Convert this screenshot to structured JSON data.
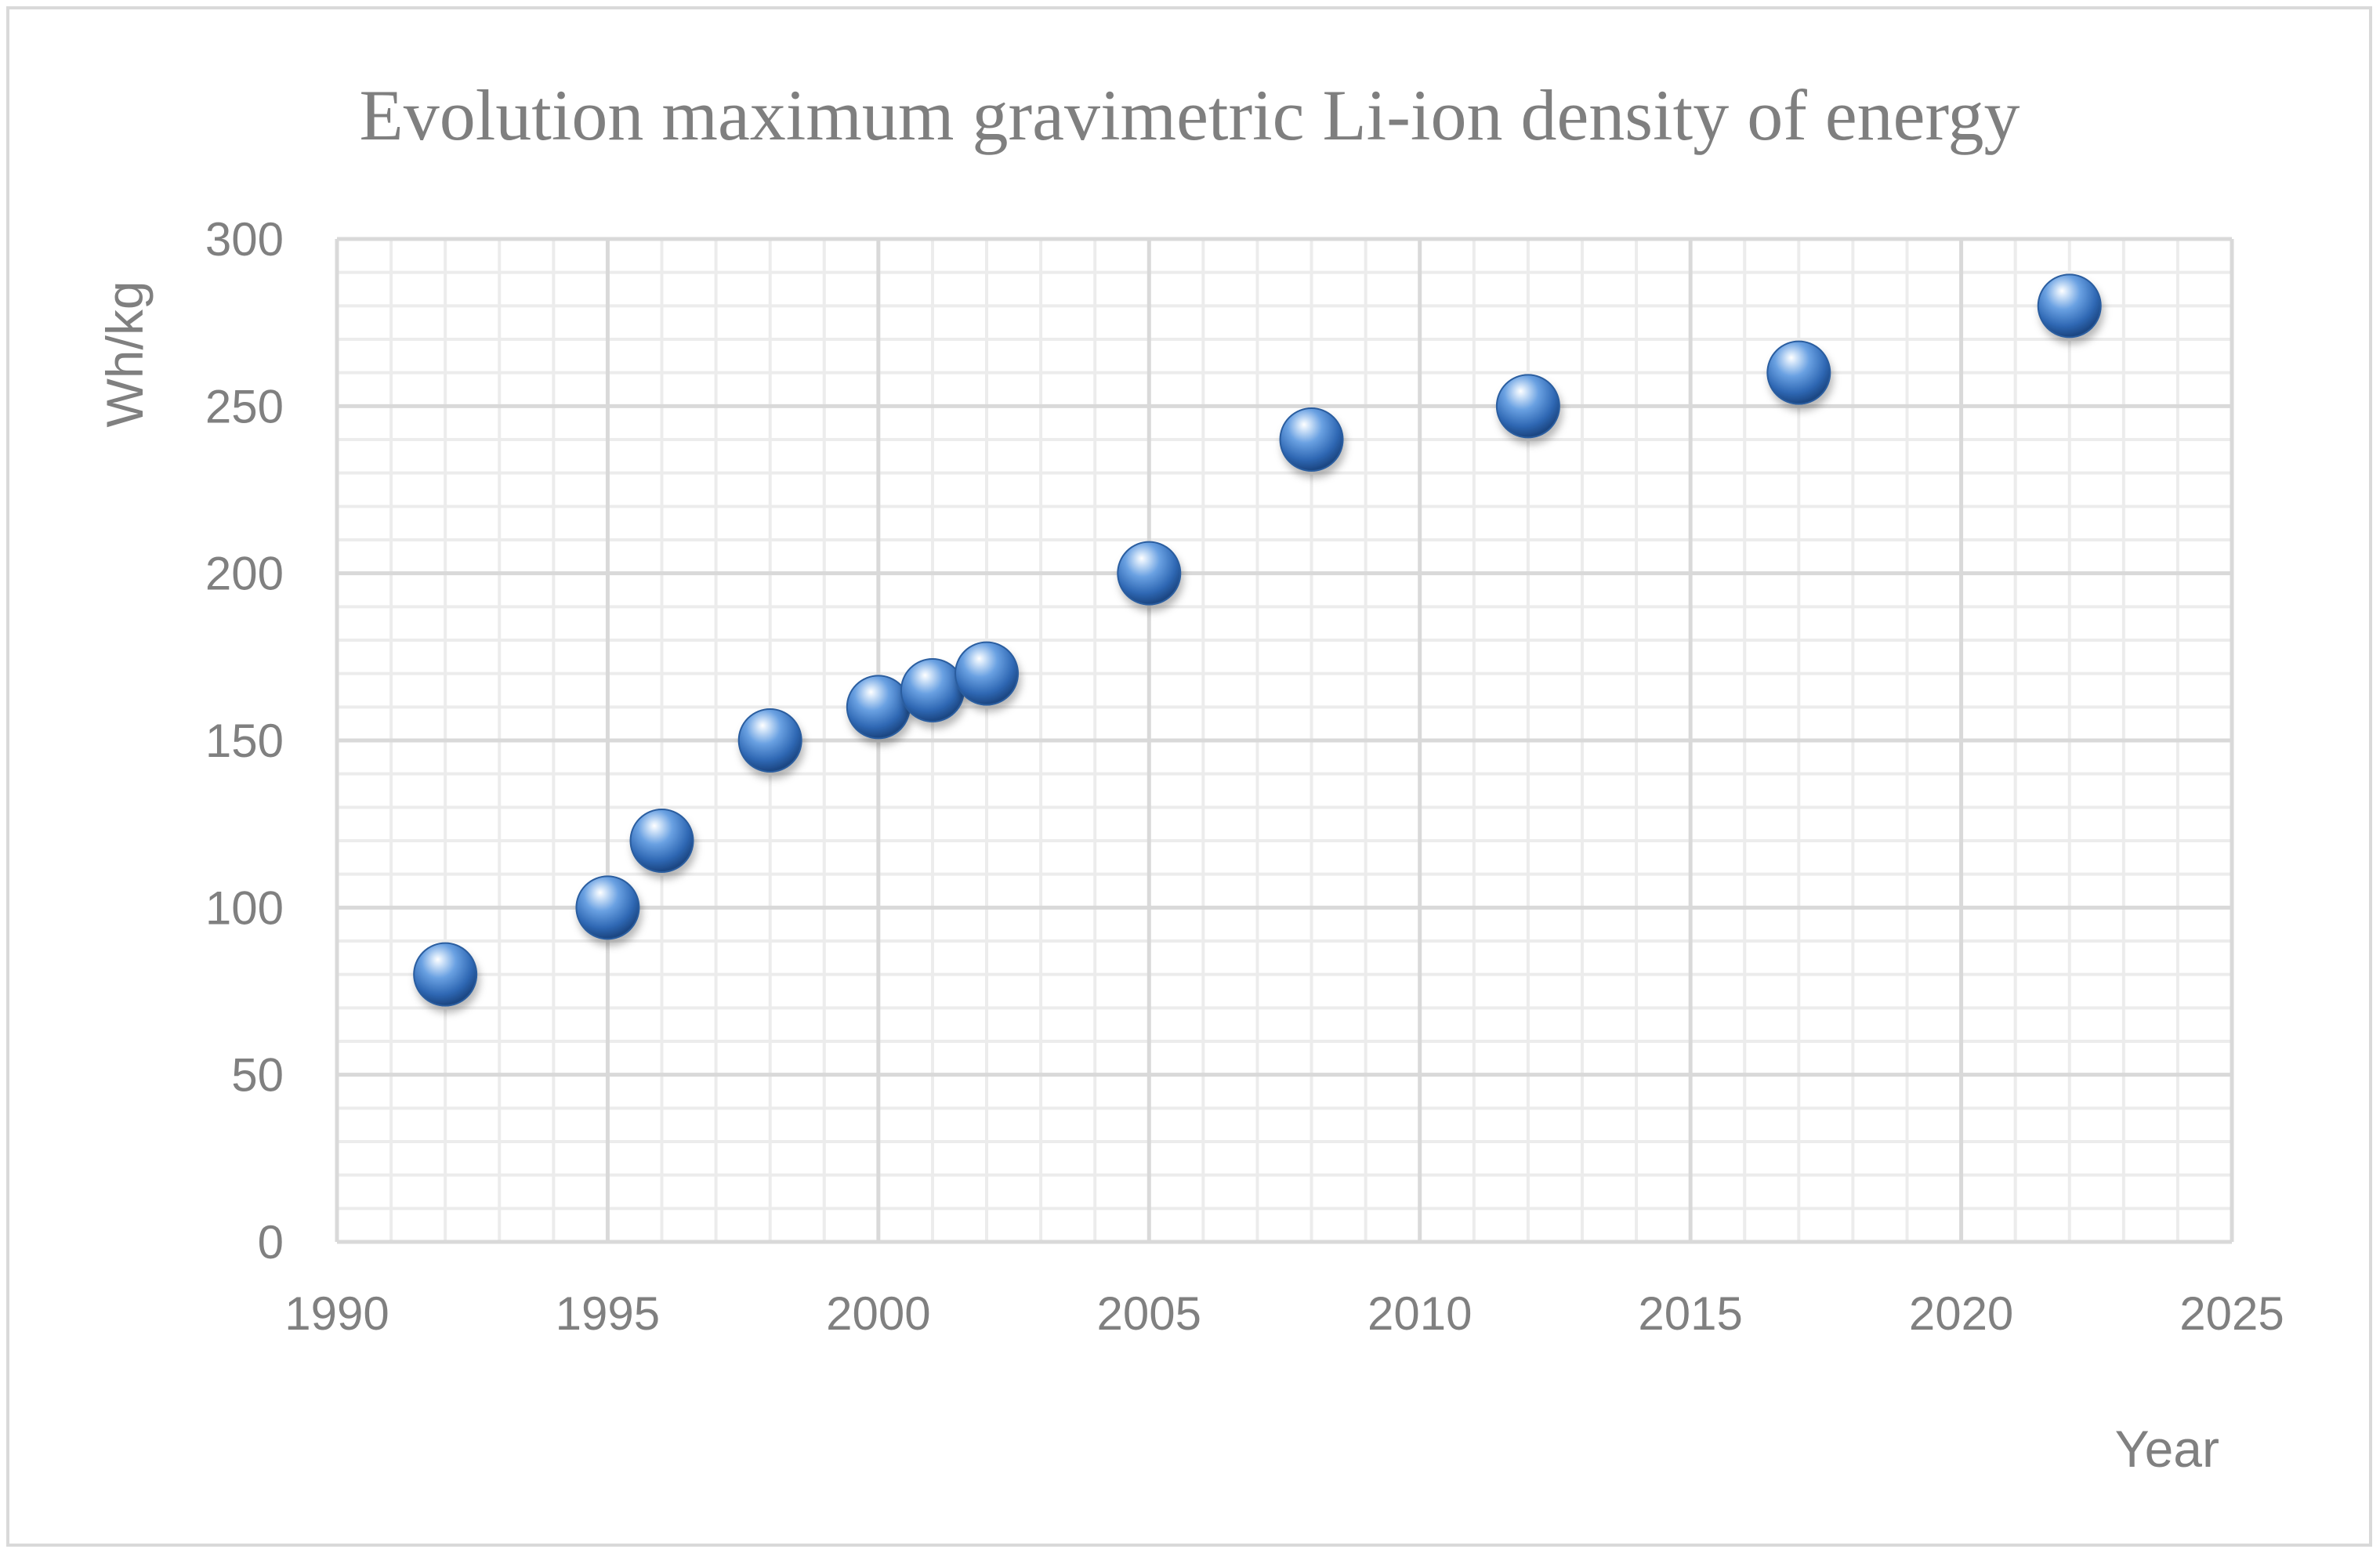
{
  "chart_data": {
    "type": "scatter",
    "title": "Evolution maximum gravimetric Li-ion density of energy",
    "xlabel": "Year",
    "ylabel": "Wh/kg",
    "xlim": [
      1990,
      2025
    ],
    "ylim": [
      0,
      300
    ],
    "x_ticks": [
      1990,
      1995,
      2000,
      2005,
      2010,
      2015,
      2020,
      2025
    ],
    "y_ticks": [
      0,
      50,
      100,
      150,
      200,
      250,
      300
    ],
    "grid": "major and minor",
    "legend": "none",
    "marker_color": "#4a86d4",
    "points": [
      {
        "x": 1992,
        "y": 80
      },
      {
        "x": 1995,
        "y": 100
      },
      {
        "x": 1996,
        "y": 120
      },
      {
        "x": 1998,
        "y": 150
      },
      {
        "x": 2000,
        "y": 160
      },
      {
        "x": 2001,
        "y": 165
      },
      {
        "x": 2002,
        "y": 170
      },
      {
        "x": 2005,
        "y": 200
      },
      {
        "x": 2008,
        "y": 240
      },
      {
        "x": 2012,
        "y": 250
      },
      {
        "x": 2017,
        "y": 260
      },
      {
        "x": 2022,
        "y": 280
      }
    ]
  }
}
